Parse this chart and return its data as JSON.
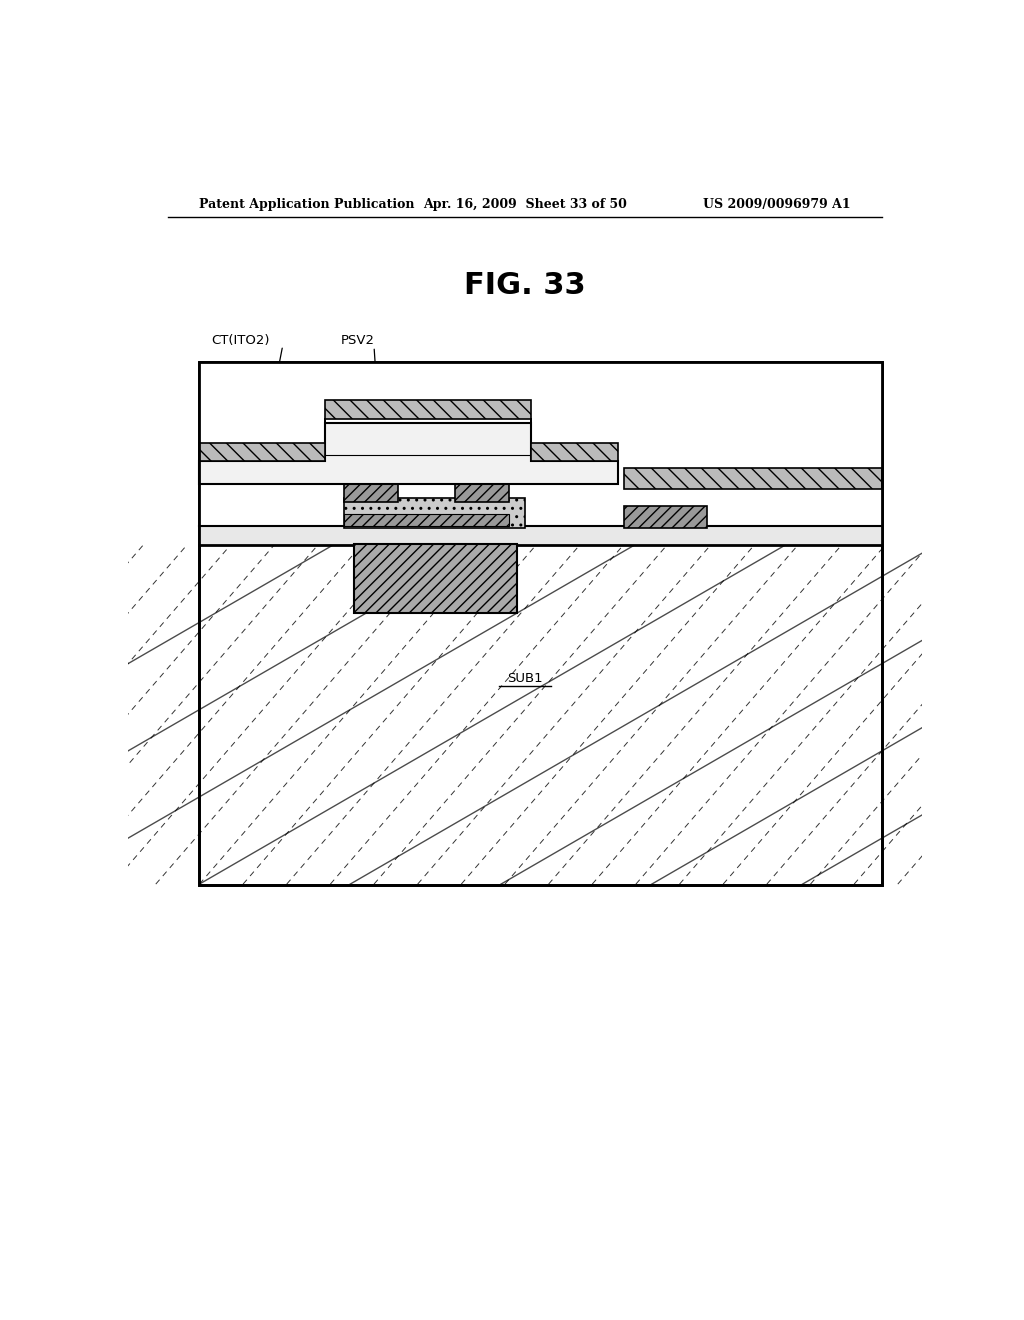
{
  "fig_title": "FIG. 33",
  "header_left": "Patent Application Publication",
  "header_mid": "Apr. 16, 2009  Sheet 33 of 50",
  "header_right": "US 2009/0096979 A1",
  "bg_color": "#ffffff"
}
